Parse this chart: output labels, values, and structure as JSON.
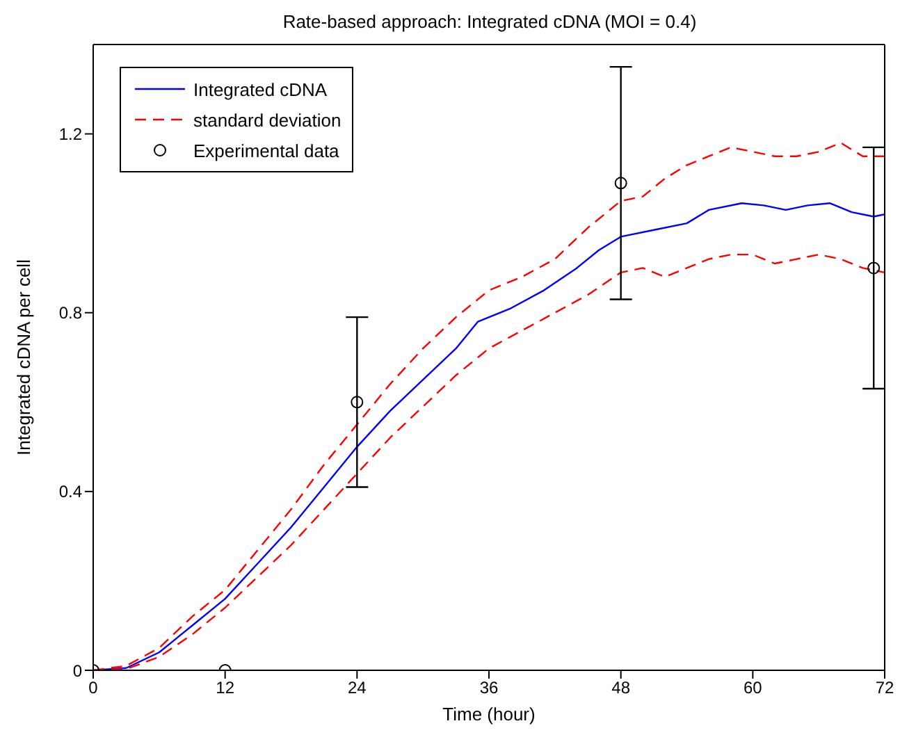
{
  "chart_data": {
    "type": "line",
    "title": "Rate-based approach: Integrated cDNA (MOI = 0.4)",
    "xlabel": "Time (hour)",
    "ylabel": "Integrated cDNA per cell",
    "xlim": [
      0,
      72
    ],
    "xticks": [
      0,
      12,
      24,
      36,
      48,
      60,
      72
    ],
    "ylim": [
      0,
      1.4
    ],
    "yticks": [
      0,
      0.4,
      0.8,
      1.2
    ],
    "legend": "top left",
    "series": [
      {
        "name": "Integrated cDNA",
        "color": "#0000ff",
        "line_style": "solid",
        "marker": "none",
        "x": [
          0,
          3,
          6,
          9,
          12,
          15,
          18,
          21,
          24,
          27,
          30,
          33,
          35,
          38,
          41,
          44,
          46,
          48,
          51,
          54,
          56,
          59,
          61,
          63,
          65,
          67,
          69,
          71,
          72
        ],
        "values": [
          0,
          0.005,
          0.04,
          0.1,
          0.16,
          0.24,
          0.32,
          0.41,
          0.5,
          0.58,
          0.65,
          0.72,
          0.78,
          0.81,
          0.85,
          0.9,
          0.94,
          0.97,
          0.985,
          1.0,
          1.03,
          1.045,
          1.04,
          1.03,
          1.04,
          1.045,
          1.025,
          1.015,
          1.02
        ]
      },
      {
        "name": "standard deviation",
        "color": "#ff0000",
        "line_style": "dashed",
        "marker": "none",
        "x": [
          0,
          3,
          6,
          9,
          12,
          15,
          18,
          21,
          24,
          27,
          30,
          33,
          36,
          39,
          42,
          45,
          48,
          50,
          52,
          54,
          56,
          58,
          60,
          62,
          64,
          66,
          68,
          70,
          72
        ],
        "values": [
          0,
          0.01,
          0.05,
          0.12,
          0.18,
          0.27,
          0.36,
          0.46,
          0.55,
          0.64,
          0.72,
          0.79,
          0.85,
          0.88,
          0.92,
          0.99,
          1.05,
          1.06,
          1.1,
          1.13,
          1.15,
          1.17,
          1.16,
          1.15,
          1.15,
          1.16,
          1.18,
          1.15,
          1.15
        ]
      },
      {
        "color": "#ff0000",
        "line_style": "dashed",
        "marker": "none",
        "x": [
          0,
          3,
          6,
          9,
          12,
          15,
          18,
          21,
          24,
          27,
          30,
          33,
          36,
          39,
          42,
          45,
          48,
          50,
          52,
          54,
          56,
          58,
          60,
          62,
          64,
          66,
          68,
          70,
          72
        ],
        "values": [
          0,
          0.003,
          0.03,
          0.08,
          0.14,
          0.21,
          0.28,
          0.36,
          0.44,
          0.52,
          0.59,
          0.66,
          0.72,
          0.76,
          0.8,
          0.84,
          0.89,
          0.9,
          0.88,
          0.9,
          0.92,
          0.93,
          0.93,
          0.91,
          0.92,
          0.93,
          0.92,
          0.9,
          0.89
        ]
      },
      {
        "name": "Experimental data",
        "type": "scatter",
        "color": "#000000",
        "marker": "circle",
        "x": [
          0,
          12,
          24,
          48,
          71
        ],
        "values": [
          0,
          0,
          0.6,
          1.09,
          0.9
        ],
        "errors": [
          null,
          null,
          0.19,
          0.26,
          0.27
        ]
      }
    ]
  }
}
